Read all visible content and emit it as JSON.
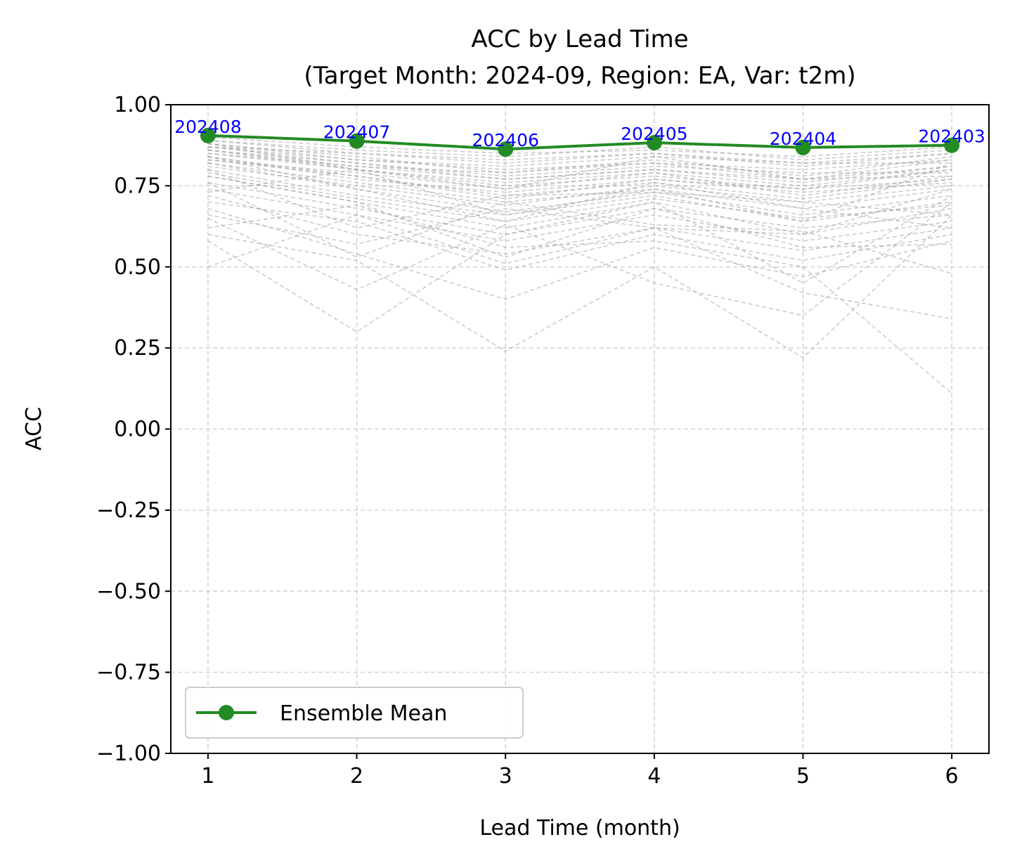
{
  "chart_data": {
    "type": "line",
    "title_line1": "ACC by Lead Time",
    "title_line2": "(Target Month: 2024-09, Region: EA, Var: t2m)",
    "xlabel": "Lead Time (month)",
    "ylabel": "ACC",
    "xlim": [
      0.75,
      6.25
    ],
    "ylim": [
      -1.0,
      1.0
    ],
    "x_ticks": [
      1,
      2,
      3,
      4,
      5,
      6
    ],
    "x_tick_labels": [
      "1",
      "2",
      "3",
      "4",
      "5",
      "6"
    ],
    "y_ticks": [
      -1.0,
      -0.75,
      -0.5,
      -0.25,
      0.0,
      0.25,
      0.5,
      0.75,
      1.0
    ],
    "y_tick_labels": [
      "−1.00",
      "−0.75",
      "−0.50",
      "−0.25",
      "0.00",
      "0.25",
      "0.50",
      "0.75",
      "1.00"
    ],
    "grid": true,
    "legend_position": "lower-left",
    "series": [
      {
        "name": "Ensemble Mean",
        "color": "#228B22",
        "x": [
          1,
          2,
          3,
          4,
          5,
          6
        ],
        "values": [
          0.905,
          0.888,
          0.863,
          0.883,
          0.868,
          0.875
        ],
        "point_labels": [
          "202408",
          "202407",
          "202406",
          "202405",
          "202404",
          "202403"
        ]
      }
    ],
    "point_label_color": "#0000FF",
    "member_color": "#999999",
    "members": [
      [
        0.86,
        0.8,
        0.75,
        0.78,
        0.74,
        0.8
      ],
      [
        0.88,
        0.83,
        0.8,
        0.82,
        0.8,
        0.83
      ],
      [
        0.84,
        0.78,
        0.72,
        0.76,
        0.71,
        0.77
      ],
      [
        0.87,
        0.85,
        0.82,
        0.85,
        0.81,
        0.85
      ],
      [
        0.82,
        0.76,
        0.7,
        0.74,
        0.68,
        0.74
      ],
      [
        0.89,
        0.86,
        0.84,
        0.87,
        0.83,
        0.86
      ],
      [
        0.8,
        0.72,
        0.66,
        0.72,
        0.64,
        0.7
      ],
      [
        0.85,
        0.81,
        0.77,
        0.8,
        0.76,
        0.81
      ],
      [
        0.83,
        0.79,
        0.74,
        0.79,
        0.72,
        0.78
      ],
      [
        0.9,
        0.87,
        0.85,
        0.86,
        0.84,
        0.87
      ],
      [
        0.78,
        0.7,
        0.62,
        0.7,
        0.6,
        0.68
      ],
      [
        0.86,
        0.82,
        0.78,
        0.81,
        0.79,
        0.79
      ],
      [
        0.81,
        0.75,
        0.69,
        0.75,
        0.7,
        0.75
      ],
      [
        0.88,
        0.84,
        0.79,
        0.83,
        0.78,
        0.84
      ],
      [
        0.84,
        0.77,
        0.73,
        0.77,
        0.73,
        0.76
      ],
      [
        0.87,
        0.83,
        0.81,
        0.84,
        0.82,
        0.82
      ],
      [
        0.76,
        0.68,
        0.6,
        0.68,
        0.62,
        0.66
      ],
      [
        0.85,
        0.8,
        0.76,
        0.79,
        0.75,
        0.8
      ],
      [
        0.89,
        0.85,
        0.83,
        0.85,
        0.82,
        0.85
      ],
      [
        0.82,
        0.74,
        0.67,
        0.73,
        0.66,
        0.72
      ],
      [
        0.86,
        0.81,
        0.79,
        0.82,
        0.77,
        0.83
      ],
      [
        0.79,
        0.71,
        0.64,
        0.71,
        0.65,
        0.69
      ],
      [
        0.87,
        0.82,
        0.77,
        0.8,
        0.77,
        0.81
      ],
      [
        0.83,
        0.78,
        0.71,
        0.77,
        0.74,
        0.77
      ],
      [
        0.74,
        0.66,
        0.58,
        0.66,
        0.58,
        0.64
      ],
      [
        0.72,
        0.6,
        0.54,
        0.62,
        0.55,
        0.62
      ],
      [
        0.7,
        0.64,
        0.49,
        0.6,
        0.52,
        0.6
      ],
      [
        0.68,
        0.54,
        0.4,
        0.56,
        0.47,
        0.58
      ],
      [
        0.65,
        0.43,
        0.63,
        0.45,
        0.35,
        0.7
      ],
      [
        0.6,
        0.52,
        0.24,
        0.5,
        0.22,
        0.66
      ],
      [
        0.58,
        0.3,
        0.6,
        0.7,
        0.45,
        0.72
      ],
      [
        0.5,
        0.66,
        0.51,
        0.62,
        0.42,
        0.34
      ],
      [
        0.62,
        0.69,
        0.56,
        0.58,
        0.5,
        0.11
      ],
      [
        0.76,
        0.53,
        0.7,
        0.63,
        0.61,
        0.48
      ],
      [
        0.78,
        0.7,
        0.53,
        0.68,
        0.56,
        0.57
      ],
      [
        0.84,
        0.74,
        0.64,
        0.76,
        0.68,
        0.62
      ],
      [
        0.66,
        0.57,
        0.68,
        0.62,
        0.6,
        0.74
      ],
      [
        0.8,
        0.62,
        0.72,
        0.73,
        0.7,
        0.66
      ],
      [
        0.88,
        0.8,
        0.74,
        0.84,
        0.77,
        0.78
      ],
      [
        0.73,
        0.8,
        0.66,
        0.74,
        0.64,
        0.82
      ]
    ]
  }
}
